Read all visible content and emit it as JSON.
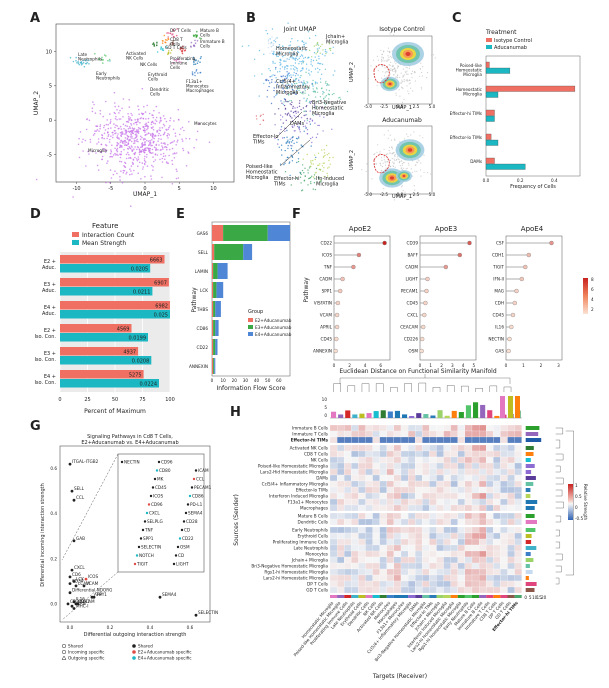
{
  "panels": [
    "A",
    "B",
    "C",
    "D",
    "E",
    "F",
    "G",
    "H"
  ],
  "chart_data": [
    {
      "panel": "A",
      "type": "scatter",
      "xlabel": "UMAP_1",
      "ylabel": "UMAP_2",
      "xticks": [
        "-10",
        "-5",
        "0",
        "5",
        "10"
      ],
      "yticks": [
        "10",
        "5",
        "0",
        "-5"
      ],
      "xlim": [
        -13,
        13
      ],
      "ylim": [
        -9,
        14
      ],
      "clusters": [
        {
          "name": "Late Neutrophils",
          "cx": -9,
          "cy": 8.5,
          "sx": 1.0,
          "sy": 0.35,
          "n": 25,
          "color": "#3fb1c9"
        },
        {
          "name": "Early Neutrophils",
          "cx": -6.3,
          "cy": 8.8,
          "sx": 0.5,
          "sy": 0.3,
          "n": 12,
          "color": "#52c46a"
        },
        {
          "name": "Activated NK Cells",
          "cx": 1.5,
          "cy": 11.2,
          "sx": 0.35,
          "sy": 0.3,
          "n": 10,
          "color": "#2e7d32"
        },
        {
          "name": "DP T Cells",
          "cx": 3.8,
          "cy": 12.6,
          "sx": 0.5,
          "sy": 0.3,
          "n": 14,
          "color": "#e0457b"
        },
        {
          "name": "CD8 T Cells",
          "cx": 3.0,
          "cy": 11.5,
          "sx": 0.35,
          "sy": 0.25,
          "n": 10,
          "color": "#ff7f0e"
        },
        {
          "name": "GD T Cells",
          "cx": 4.0,
          "cy": 11.2,
          "sx": 0.3,
          "sy": 0.25,
          "n": 8,
          "color": "#8c564b"
        },
        {
          "name": "NK Cells",
          "cx": 2.4,
          "cy": 10.3,
          "sx": 0.3,
          "sy": 0.25,
          "n": 8,
          "color": "#17becf"
        },
        {
          "name": "Mature B Cells",
          "cx": 7.4,
          "cy": 12.3,
          "sx": 0.35,
          "sy": 0.3,
          "n": 12,
          "color": "#2ca02c"
        },
        {
          "name": "Immature B Cells",
          "cx": 7.0,
          "cy": 11.0,
          "sx": 0.35,
          "sy": 0.3,
          "n": 10,
          "color": "#9467bd"
        },
        {
          "name": "Proliferating Immune Cells",
          "cx": 5.4,
          "cy": 10.2,
          "sx": 0.4,
          "sy": 0.3,
          "n": 12,
          "color": "#d62728"
        },
        {
          "name": "Erythroid Cells",
          "cx": 3.7,
          "cy": 9.8,
          "sx": 0.3,
          "sy": 0.3,
          "n": 8,
          "color": "#bcbd22"
        },
        {
          "name": "Dendritic Cells",
          "cx": 4.6,
          "cy": 8.7,
          "sx": 0.35,
          "sy": 0.3,
          "n": 8,
          "color": "#e377c2"
        },
        {
          "name": "F13a1+ Monocytes Macrophages",
          "cx": 7.6,
          "cy": 8.7,
          "sx": 0.6,
          "sy": 0.35,
          "n": 14,
          "color": "#1f77b4"
        },
        {
          "name": "Monocytes",
          "cx": 7.4,
          "cy": 6.9,
          "sx": 0.5,
          "sy": 0.25,
          "n": 10,
          "color": "#3e7fc9"
        },
        {
          "name": "Microglia",
          "cx": -1.3,
          "cy": -2.8,
          "sx": 3.4,
          "sy": 2.4,
          "n": 650,
          "color": "#c775e8"
        }
      ]
    },
    {
      "panel": "B",
      "type": "scatter",
      "titles": [
        "Joint UMAP",
        "Isotype Control",
        "Aducanumab"
      ],
      "xlabel": "UMAP_1",
      "ylabel": "UMAP_2",
      "xticks": [
        "-5.0",
        "-2.5",
        "0.0",
        "2.5",
        "5.0"
      ],
      "annotations": [
        "Homeostatic Microglia",
        "Jchain+ Microglia",
        "Ccl5/4+ Inflammatory Microglia",
        "Bri3-Negative Homeostatic Microglia",
        "DAMs",
        "Effector-lo TIMs",
        "Posed-like Homeostatic Microglia",
        "Effector-hi TIMs",
        "Ifn-Induced Microglia"
      ]
    },
    {
      "panel": "C",
      "type": "bar",
      "legend_title": "Treatment",
      "series": [
        {
          "name": "Isotype Control",
          "color": "#ef6f63",
          "values": [
            0.02,
            0.52,
            0.05,
            0.03,
            0.05
          ]
        },
        {
          "name": "Aducanumab",
          "color": "#1bb7c2",
          "values": [
            0.14,
            0.07,
            0.05,
            0.07,
            0.23
          ]
        }
      ],
      "categories": [
        "Poised-like Homeostatic Microglia",
        "Homeostatic Microglia",
        "Effector-hi TIMs",
        "Effector-lo TIMs",
        "DAMs"
      ],
      "xlabel": "Frequency of Cells",
      "xticks": [
        "0.0",
        "0.2",
        "0.4"
      ],
      "xlim": [
        0,
        0.55
      ]
    },
    {
      "panel": "D",
      "type": "bar",
      "legend_title": "Feature",
      "series": [
        {
          "name": "Interaction Count",
          "color": "#ef6f63",
          "values": [
            6663,
            6907,
            6982,
            4569,
            4937,
            5275
          ],
          "labels": [
            "6663",
            "6907",
            "6982",
            "4569",
            "4937",
            "5275"
          ],
          "pct": [
            95,
            99,
            100,
            65,
            71,
            76
          ]
        },
        {
          "name": "Mean Strength",
          "color": "#1bb7c2",
          "values": [
            0.0205,
            0.0211,
            0.025,
            0.0199,
            0.0208,
            0.0224
          ],
          "labels": [
            "0.0205",
            "0.0211",
            "0.025",
            "0.0199",
            "0.0208",
            "0.0224"
          ],
          "pct": [
            82,
            84,
            100,
            80,
            83,
            90
          ]
        }
      ],
      "categories": [
        "E2 + Adc.",
        "E3 + Adc.",
        "E4 + Adc.",
        "E2 + Iso. Con.",
        "E3 + Iso. Con.",
        "E4 + Iso. Con."
      ],
      "xlabel": "Percent of Maximum",
      "xticks": [
        "0",
        "25",
        "50",
        "75",
        "100"
      ],
      "xlim": [
        0,
        100
      ]
    },
    {
      "panel": "E",
      "type": "bar",
      "legend_title": "Group",
      "series": [
        {
          "name": "E2+Aducanumab",
          "color": "#ef6f63",
          "values": [
            10,
            2,
            1,
            1,
            1,
            1,
            1,
            1
          ]
        },
        {
          "name": "E3+Aducanumab",
          "color": "#3aa845",
          "values": [
            40,
            26,
            4,
            3,
            2,
            2,
            2,
            1
          ]
        },
        {
          "name": "E4+Aducanumab",
          "color": "#4f86d6",
          "values": [
            20,
            8,
            9,
            6,
            5,
            3,
            2,
            1
          ]
        }
      ],
      "categories": [
        "GAS6",
        "SELL",
        "LAMIN",
        "LCK",
        "THBS",
        "CD86",
        "CD22",
        "ANNEXIN"
      ],
      "ylabel": "Pathway",
      "xlabel": "Information Flow Score",
      "xticks": [
        "0",
        "10",
        "20",
        "30",
        "40",
        "50",
        "60"
      ],
      "xlim": [
        0,
        70
      ]
    },
    {
      "panel": "F",
      "type": "scatter",
      "titles": [
        "ApoE2",
        "ApoE3",
        "ApoE4"
      ],
      "ylabel": "Pathway",
      "colorbar_ticks": [
        "8",
        "6",
        "4",
        "2"
      ],
      "groups": [
        {
          "pathways": [
            "CD22",
            "ICOS",
            "TNF",
            "CADM",
            "SPP1",
            "VISFATIN",
            "VCAM",
            "APRIL",
            "CD45",
            "ANNEXIN"
          ],
          "values": [
            6.5,
            3.2,
            2.5,
            1.1,
            0.8,
            0.5,
            0.4,
            0.4,
            0.3,
            0.2
          ],
          "xticks": [
            "0",
            "2",
            "4",
            "6"
          ],
          "xmax": 7.2
        },
        {
          "pathways": [
            "CD39",
            "BAFF",
            "CADM",
            "LIGHT",
            "PECAM1",
            "CD45",
            "CXCL",
            "CEACAM",
            "CD226",
            "OSM"
          ],
          "values": [
            4.6,
            3.7,
            2.4,
            0.7,
            0.6,
            0.5,
            0.4,
            0.3,
            0.2,
            0.15
          ],
          "xticks": [
            "0",
            "1",
            "2",
            "3",
            "4",
            "5"
          ],
          "xmax": 5.2
        },
        {
          "pathways": [
            "CSF",
            "CDH1",
            "TIGIT",
            "IFN-II",
            "MAG",
            "CDH",
            "CD45",
            "IL16",
            "NECTIN",
            "GAS"
          ],
          "values": [
            2.6,
            1.3,
            1.1,
            0.9,
            0.6,
            0.5,
            0.4,
            0.3,
            0.2,
            0.15
          ],
          "xticks": [
            "0",
            "1",
            "2",
            "3"
          ],
          "xmax": 3.2
        }
      ]
    },
    {
      "panel": "G",
      "type": "scatter",
      "title": "Signaling Pathways in Cd8 T Cells,\nE2+Aducanumab vs. E4+Aducanumab",
      "xlabel": "Differential outgoing interaction strength",
      "ylabel": "Differential incoming interaction strength",
      "xticks": [
        "0.0",
        "0.2",
        "0.4",
        "0.6"
      ],
      "yticks": [
        "0.0",
        "0.2",
        "0.4",
        "0.6"
      ],
      "xlim": [
        -0.05,
        0.7
      ],
      "ylim": [
        -0.08,
        0.7
      ],
      "labeled_points": [
        {
          "label": "ITGAL-ITGB2",
          "x": 0.0,
          "y": 0.62,
          "group": "shared"
        },
        {
          "label": "SELL",
          "x": 0.01,
          "y": 0.5,
          "group": "shared"
        },
        {
          "label": "CCL",
          "x": 0.02,
          "y": 0.46,
          "group": "shared"
        },
        {
          "label": "GAB",
          "x": 0.02,
          "y": 0.28,
          "group": "shared"
        },
        {
          "label": "CXCL",
          "x": 0.01,
          "y": 0.15,
          "group": "shared"
        },
        {
          "label": "CD6",
          "x": 0.0,
          "y": 0.12,
          "group": "shared"
        },
        {
          "label": "LCK",
          "x": 0.02,
          "y": 0.1,
          "group": "shared"
        },
        {
          "label": "CD34",
          "x": 0.0,
          "y": 0.09,
          "group": "shared"
        },
        {
          "label": "LCAM",
          "x": 0.03,
          "y": 0.08,
          "group": "shared"
        },
        {
          "label": "VCAM",
          "x": 0.07,
          "y": 0.08,
          "group": "shared"
        },
        {
          "label": "ICOS",
          "x": 0.08,
          "y": 0.11,
          "group": "E2"
        },
        {
          "label": "Differential NDORG",
          "x": 0.0,
          "y": 0.05,
          "group": "shared"
        },
        {
          "label": "APP",
          "x": 0.11,
          "y": 0.03,
          "group": "shared"
        },
        {
          "label": "THY1",
          "x": 0.12,
          "y": 0.03,
          "group": "shared"
        },
        {
          "label": "SEMA4",
          "x": 0.45,
          "y": 0.03,
          "group": "shared"
        },
        {
          "label": "ALCAM",
          "x": 0.04,
          "y": 0.0,
          "group": "shared"
        },
        {
          "label": "IL16",
          "x": 0.02,
          "y": 0.01,
          "group": "shared"
        },
        {
          "label": "CDH1",
          "x": 0.03,
          "y": 0.0,
          "group": "shared"
        },
        {
          "label": "CD34",
          "x": -0.01,
          "y": 0.0,
          "group": "shared"
        },
        {
          "label": "VCAN",
          "x": 0.01,
          "y": -0.01,
          "group": "shared"
        },
        {
          "label": "MHC-I",
          "x": 0.02,
          "y": -0.02,
          "group": "shared"
        },
        {
          "label": "SELECTIN",
          "x": 0.63,
          "y": -0.05,
          "group": "shared"
        }
      ],
      "inset_labels": [
        "NECTIN",
        "CD96",
        "ICAM",
        "CD80",
        "CCL",
        "MK",
        "PECAM1",
        "CD45",
        "CD86",
        "ICOS",
        "PD-L1",
        "CD96",
        "SEMA4",
        "CXCL",
        "CD28",
        "SELPLG",
        "CD",
        "TNF",
        "CD22",
        "SPP1",
        "OSM",
        "SELECTIN",
        "CD",
        "NOTCH",
        "LIGHT",
        "TIGIT"
      ],
      "legend": [
        {
          "label": "Shared",
          "shape": "circle-open"
        },
        {
          "label": "Incoming specific",
          "shape": "circle-open"
        },
        {
          "label": "Outgoing specific",
          "shape": "triangle-open"
        },
        {
          "label": "Shared",
          "shape": "dot",
          "color": "#222222"
        },
        {
          "label": "E2+Aducanumab specific",
          "shape": "dot",
          "color": "#e04b45"
        },
        {
          "label": "E4+Aducanumab specific",
          "shape": "dot",
          "color": "#1bb7c2"
        }
      ]
    },
    {
      "panel": "H",
      "type": "heatmap",
      "title": "Euclidean Distance on Functional Similarity Manifold",
      "xlabel": "Targets (Receiver)",
      "ylabel": "Sources (Sender)",
      "colorbar_ticks": [
        "1",
        "0.5",
        "0",
        "-0.5"
      ],
      "colorbar_label": "Relative Strength",
      "bar_ticks": [
        "0",
        "5",
        "10",
        "15",
        "20"
      ],
      "rows": [
        "Immature B Cells",
        "Immature T Cells",
        "Effector-hi TIMs",
        "Activated NK Cells",
        "CD8 T Cells",
        "NK Cells",
        "Poised-like Homeostatic Microglia",
        "Lars2-Hid Homeostatic Microglia",
        "DAMs",
        "Ccl5/4+ Inflammatory Microglia",
        "Effector-lo TIMs",
        "Interferon Induced Microglia",
        "F13a1+ Monocytes",
        "Macrophages",
        "Mature B Cells",
        "Dendritic Cells",
        "Early Neutrophils",
        "Erythroid Cells",
        "Proliferating Immune Cells",
        "Late Neutrophils",
        "Monocytes",
        "Jchain+ Microglia",
        "Bri3-Negative Homeostatic Microglia",
        "Rgs1-hi Homeostatic Microglia",
        "Lars2-hi Homeostatic Microglia",
        "DP T Cells",
        "GD T Cells"
      ],
      "columns": [
        "Homeostatic Microglia",
        "Poised-like Homeostatic Microglia",
        "Proliferating Immune Cells",
        "Late Neutrophils",
        "Erythroid Cells",
        "Dendritic Cells",
        "NK Cells",
        "Activated NK Cells",
        "Monocytes",
        "Macrophages",
        "F13a1+ Monocytes",
        "Ccl5/4+ Inflammatory Microglia",
        "DAMs",
        "Bri3-Negative Homeostatic Microglia",
        "Effector-lo TIMs",
        "Jchain+ Microglia",
        "Interferon Induced Microglia",
        "Lars2-hi Homeostatic Microglia",
        "Rgs1-hi Homeostatic Microglia",
        "Early Neutrophils",
        "Mature B Cells",
        "Immature B Cells",
        "Immature T Cells",
        "CD8 T Cells",
        "DP T Cells",
        "GD T Cells",
        "Effector-hi TIMs"
      ]
    }
  ]
}
